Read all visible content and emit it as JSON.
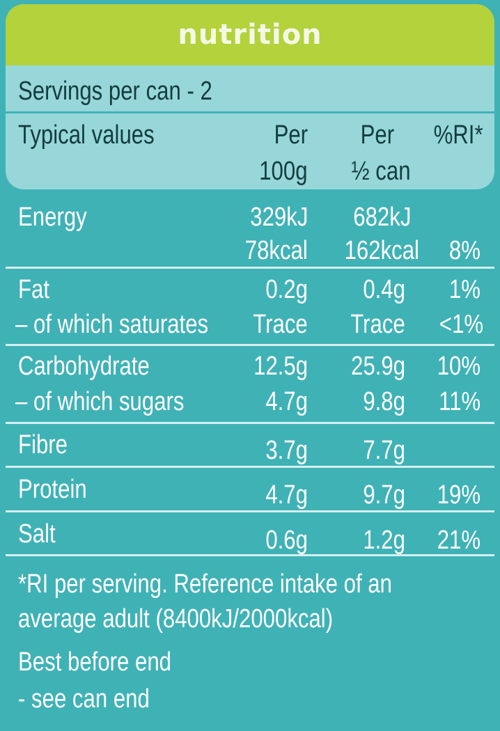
{
  "title": "nutrition",
  "servings": "Servings per can - 2",
  "header": {
    "col_label": "Typical values",
    "col1_line1": "Per",
    "col1_line2": "100g",
    "col2_line1": "Per",
    "col2_line2": "½ can",
    "col3": "%RI*"
  },
  "rows": {
    "energy": {
      "label": "Energy",
      "per100_kj": "329kJ",
      "perhalf_kj": "682kJ",
      "per100_kcal": "78kcal",
      "perhalf_kcal": "162kcal",
      "ri": "8%"
    },
    "fat": {
      "label": "Fat",
      "per100": "0.2g",
      "perhalf": "0.4g",
      "ri": "1%"
    },
    "saturates": {
      "label": "– of which saturates",
      "per100": "Trace",
      "perhalf": "Trace",
      "ri": "<1%"
    },
    "carbohydrate": {
      "label": "Carbohydrate",
      "per100": "12.5g",
      "perhalf": "25.9g",
      "ri": "10%"
    },
    "sugars": {
      "label": "– of which sugars",
      "per100": "4.7g",
      "perhalf": "9.8g",
      "ri": "11%"
    },
    "fibre": {
      "label": "Fibre",
      "per100": "3.7g",
      "perhalf": "7.7g",
      "ri": ""
    },
    "protein": {
      "label": "Protein",
      "per100": "4.7g",
      "perhalf": "9.7g",
      "ri": "19%"
    },
    "salt": {
      "label": "Salt",
      "per100": "0.6g",
      "perhalf": "1.2g",
      "ri": "21%"
    }
  },
  "footnote_line1": "*RI per serving. Reference intake of an",
  "footnote_line2": "average adult (8400kJ/2000kcal)",
  "best_before_line1": "Best before end",
  "best_before_line2": " - see can end"
}
